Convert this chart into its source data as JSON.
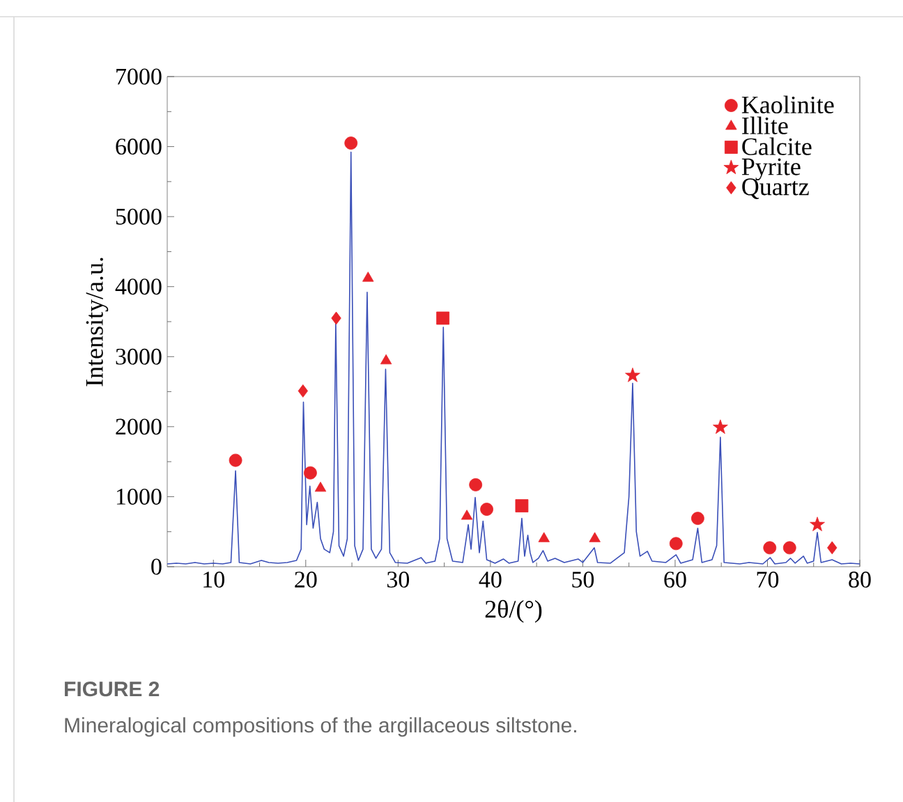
{
  "chart_data": {
    "type": "line",
    "xlabel": "2θ/(°)",
    "ylabel": "Intensity/a.u.",
    "xlim": [
      5,
      80
    ],
    "ylim": [
      0,
      7000
    ],
    "xticks": [
      10,
      20,
      30,
      40,
      50,
      60,
      70,
      80
    ],
    "yticks": [
      0,
      1000,
      2000,
      3000,
      4000,
      5000,
      6000,
      7000
    ],
    "grid": false,
    "legend": "top right",
    "annotations": [
      "**FIGURE 2**",
      "Mineralogical compositions of the argillaceous siltstone."
    ],
    "series": [
      {
        "color": "#3a4fb8",
        "marker": "none",
        "line_style": "solid",
        "x": [
          5,
          6,
          7,
          8,
          9,
          10,
          11,
          11.9,
          12.4,
          12.8,
          14,
          15.2,
          16,
          17,
          18,
          19,
          19.5,
          19.75,
          20.1,
          20.45,
          20.8,
          21.25,
          21.6,
          22,
          22.6,
          23.0,
          23.25,
          23.6,
          24.1,
          24.5,
          24.9,
          25.3,
          25.7,
          26.2,
          26.65,
          27.1,
          27.6,
          28.2,
          28.65,
          29.1,
          29.7,
          31,
          32.5,
          33,
          34,
          34.5,
          34.9,
          35.3,
          35.9,
          37,
          37.6,
          37.9,
          38.35,
          38.8,
          39.2,
          39.6,
          40.5,
          41.4,
          42,
          43,
          43.4,
          43.7,
          44.05,
          44.3,
          44.6,
          45.2,
          45.7,
          46.2,
          47,
          48,
          49.5,
          50,
          51.25,
          51.6,
          53,
          54.5,
          55.0,
          55.4,
          55.8,
          56.2,
          57,
          57.5,
          59,
          60.1,
          60.6,
          61.9,
          62.45,
          62.9,
          64,
          64.5,
          64.9,
          65.3,
          67,
          68,
          69.5,
          70.3,
          70.8,
          72,
          72.5,
          73,
          73.9,
          74.3,
          75.0,
          75.4,
          75.8,
          77,
          78,
          79,
          80
        ],
        "values": [
          40,
          50,
          40,
          60,
          40,
          50,
          40,
          60,
          1370,
          60,
          40,
          90,
          60,
          50,
          60,
          90,
          250,
          2350,
          600,
          1150,
          550,
          920,
          400,
          250,
          200,
          500,
          3490,
          300,
          150,
          400,
          5920,
          300,
          90,
          250,
          3920,
          250,
          120,
          250,
          2820,
          200,
          60,
          50,
          130,
          50,
          80,
          400,
          3420,
          400,
          80,
          60,
          600,
          250,
          990,
          200,
          650,
          100,
          50,
          110,
          50,
          80,
          690,
          150,
          450,
          200,
          60,
          120,
          230,
          80,
          120,
          60,
          110,
          60,
          270,
          60,
          50,
          200,
          1000,
          2620,
          500,
          150,
          220,
          80,
          60,
          170,
          50,
          100,
          550,
          60,
          100,
          300,
          1850,
          60,
          40,
          60,
          40,
          130,
          40,
          60,
          120,
          50,
          150,
          50,
          80,
          490,
          60,
          100,
          40,
          50,
          40
        ]
      },
      {
        "type": "scatter",
        "name": "Kaolinite",
        "color": "#e8242a",
        "marker": "circle",
        "x": [
          12.4,
          20.5,
          24.9,
          38.4,
          39.6,
          60.1,
          62.45,
          70.25,
          72.4
        ],
        "values": [
          1520,
          1340,
          6050,
          1170,
          820,
          330,
          690,
          270,
          270
        ]
      },
      {
        "type": "scatter",
        "name": "Illite",
        "color": "#e8242a",
        "marker": "triangle",
        "x": [
          21.6,
          26.75,
          28.7,
          37.45,
          45.8,
          51.3
        ],
        "values": [
          1120,
          4120,
          2940,
          720,
          400,
          400
        ]
      },
      {
        "type": "scatter",
        "name": "Calcite",
        "color": "#e8242a",
        "marker": "square",
        "x": [
          34.85,
          43.4
        ],
        "values": [
          3550,
          870
        ]
      },
      {
        "type": "scatter",
        "name": "Pyrite",
        "color": "#e8242a",
        "marker": "star",
        "x": [
          55.4,
          64.9,
          75.4
        ],
        "values": [
          2730,
          1990,
          600
        ]
      },
      {
        "type": "scatter",
        "name": "Quartz",
        "color": "#e8242a",
        "marker": "diamond",
        "x": [
          19.7,
          23.3,
          77.0
        ],
        "values": [
          2510,
          3550,
          270
        ]
      }
    ]
  }
}
